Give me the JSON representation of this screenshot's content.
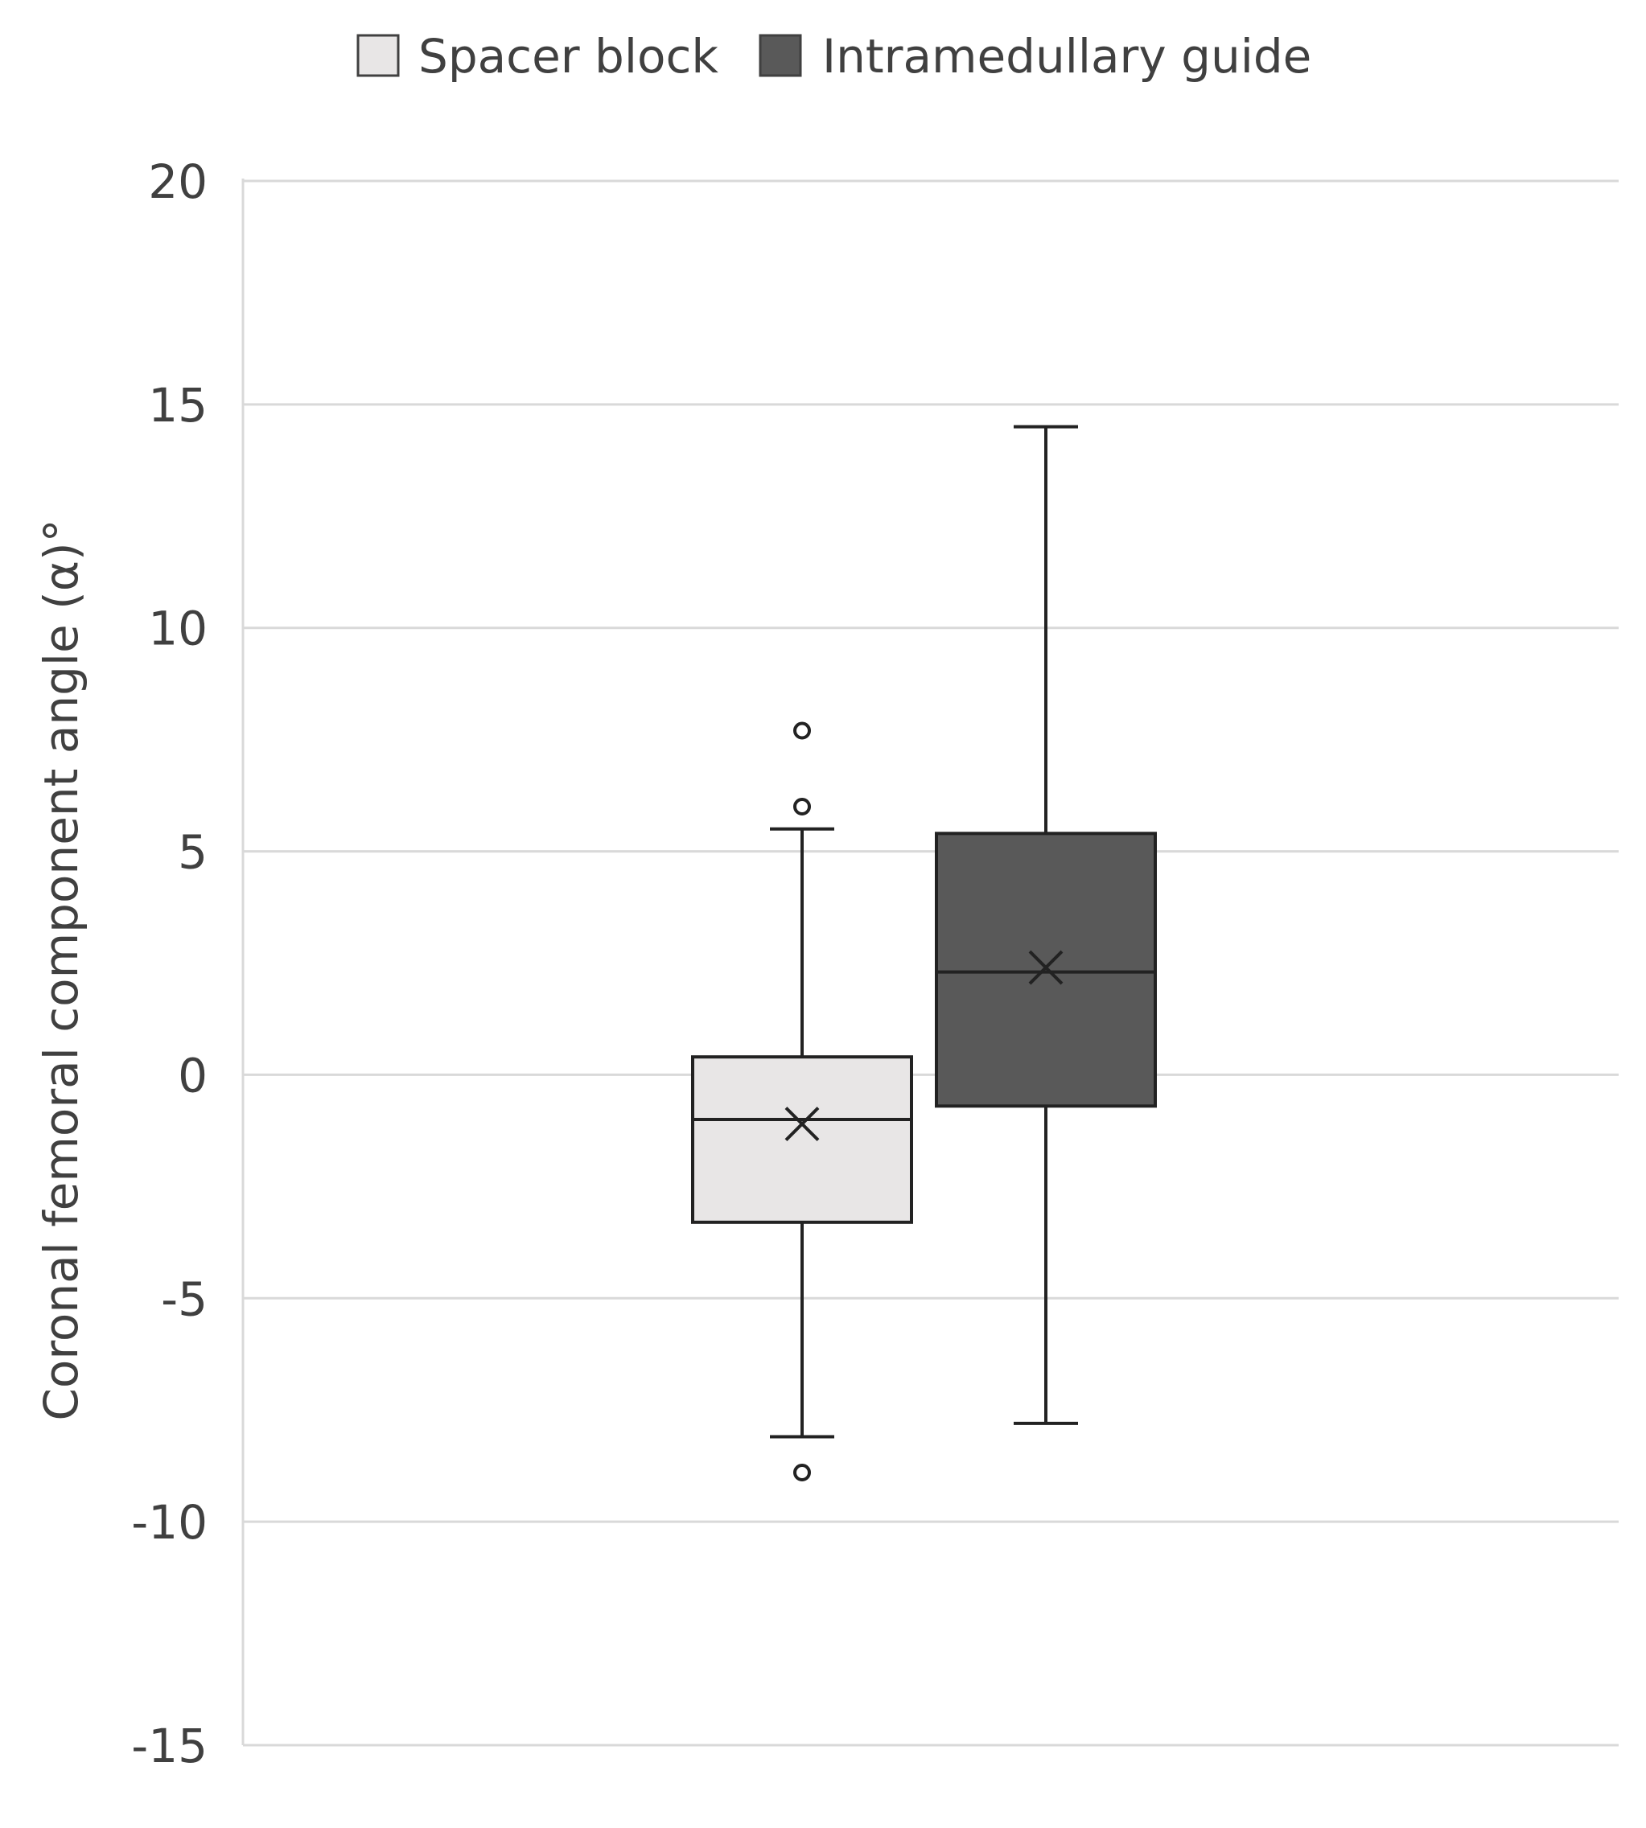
{
  "chart_data": {
    "type": "box",
    "ylabel": "Coronal femoral component angle (α)°",
    "ylim": [
      -15,
      20
    ],
    "yticks": [
      -15,
      -10,
      -5,
      0,
      5,
      10,
      15,
      20
    ],
    "grid": true,
    "legend_position": "top-center",
    "series": [
      {
        "name": "Spacer block",
        "color": "#e8e6e6",
        "min": -8.1,
        "q1": -3.3,
        "median": -1.0,
        "mean": -1.1,
        "q3": 0.4,
        "max": 5.5,
        "outliers": [
          7.7,
          6.0,
          -8.9
        ]
      },
      {
        "name": "Intramedullary guide",
        "color": "#595959",
        "min": -7.8,
        "q1": -0.7,
        "median": 2.3,
        "mean": 2.4,
        "q3": 5.4,
        "max": 14.5,
        "outliers": []
      }
    ]
  }
}
